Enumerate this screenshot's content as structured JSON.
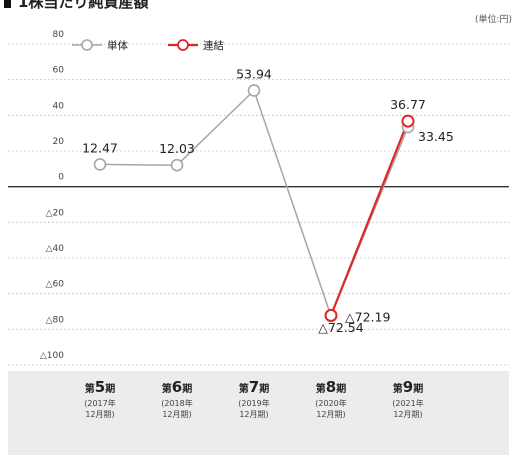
{
  "chart_data": {
    "type": "line",
    "title": "1株当たり純資産額",
    "unit_label": "(単位:円)",
    "categories": [
      {
        "prefix": "第",
        "num": "5",
        "suffix": "期",
        "year": "(2017年",
        "close": "12月期)"
      },
      {
        "prefix": "第",
        "num": "6",
        "suffix": "期",
        "year": "(2018年",
        "close": "12月期)"
      },
      {
        "prefix": "第",
        "num": "7",
        "suffix": "期",
        "year": "(2019年",
        "close": "12月期)"
      },
      {
        "prefix": "第",
        "num": "8",
        "suffix": "期",
        "year": "(2020年",
        "close": "12月期)"
      },
      {
        "prefix": "第",
        "num": "9",
        "suffix": "期",
        "year": "(2021年",
        "close": "12月期)"
      }
    ],
    "y_ticks": [
      {
        "value": 80,
        "label": "80"
      },
      {
        "value": 60,
        "label": "60"
      },
      {
        "value": 40,
        "label": "40"
      },
      {
        "value": 20,
        "label": "20"
      },
      {
        "value": 0,
        "label": "0"
      },
      {
        "value": -20,
        "label": "△20"
      },
      {
        "value": -40,
        "label": "△40"
      },
      {
        "value": -60,
        "label": "△60"
      },
      {
        "value": -80,
        "label": "△80"
      },
      {
        "value": -100,
        "label": "△100"
      }
    ],
    "ylim": [
      -100,
      80
    ],
    "grid": true,
    "legend_position": "top-left",
    "series": [
      {
        "name": "単体",
        "color": "#a6a6a6",
        "values": [
          12.47,
          12.03,
          53.94,
          -72.54,
          33.45
        ],
        "labels": [
          "12.47",
          "12.03",
          "53.94",
          "△72.54",
          "33.45"
        ]
      },
      {
        "name": "連結",
        "color": "#e0262b",
        "values": [
          null,
          null,
          null,
          -72.19,
          36.77
        ],
        "labels": [
          "",
          "",
          "",
          "△72.19",
          "36.77"
        ]
      }
    ]
  }
}
